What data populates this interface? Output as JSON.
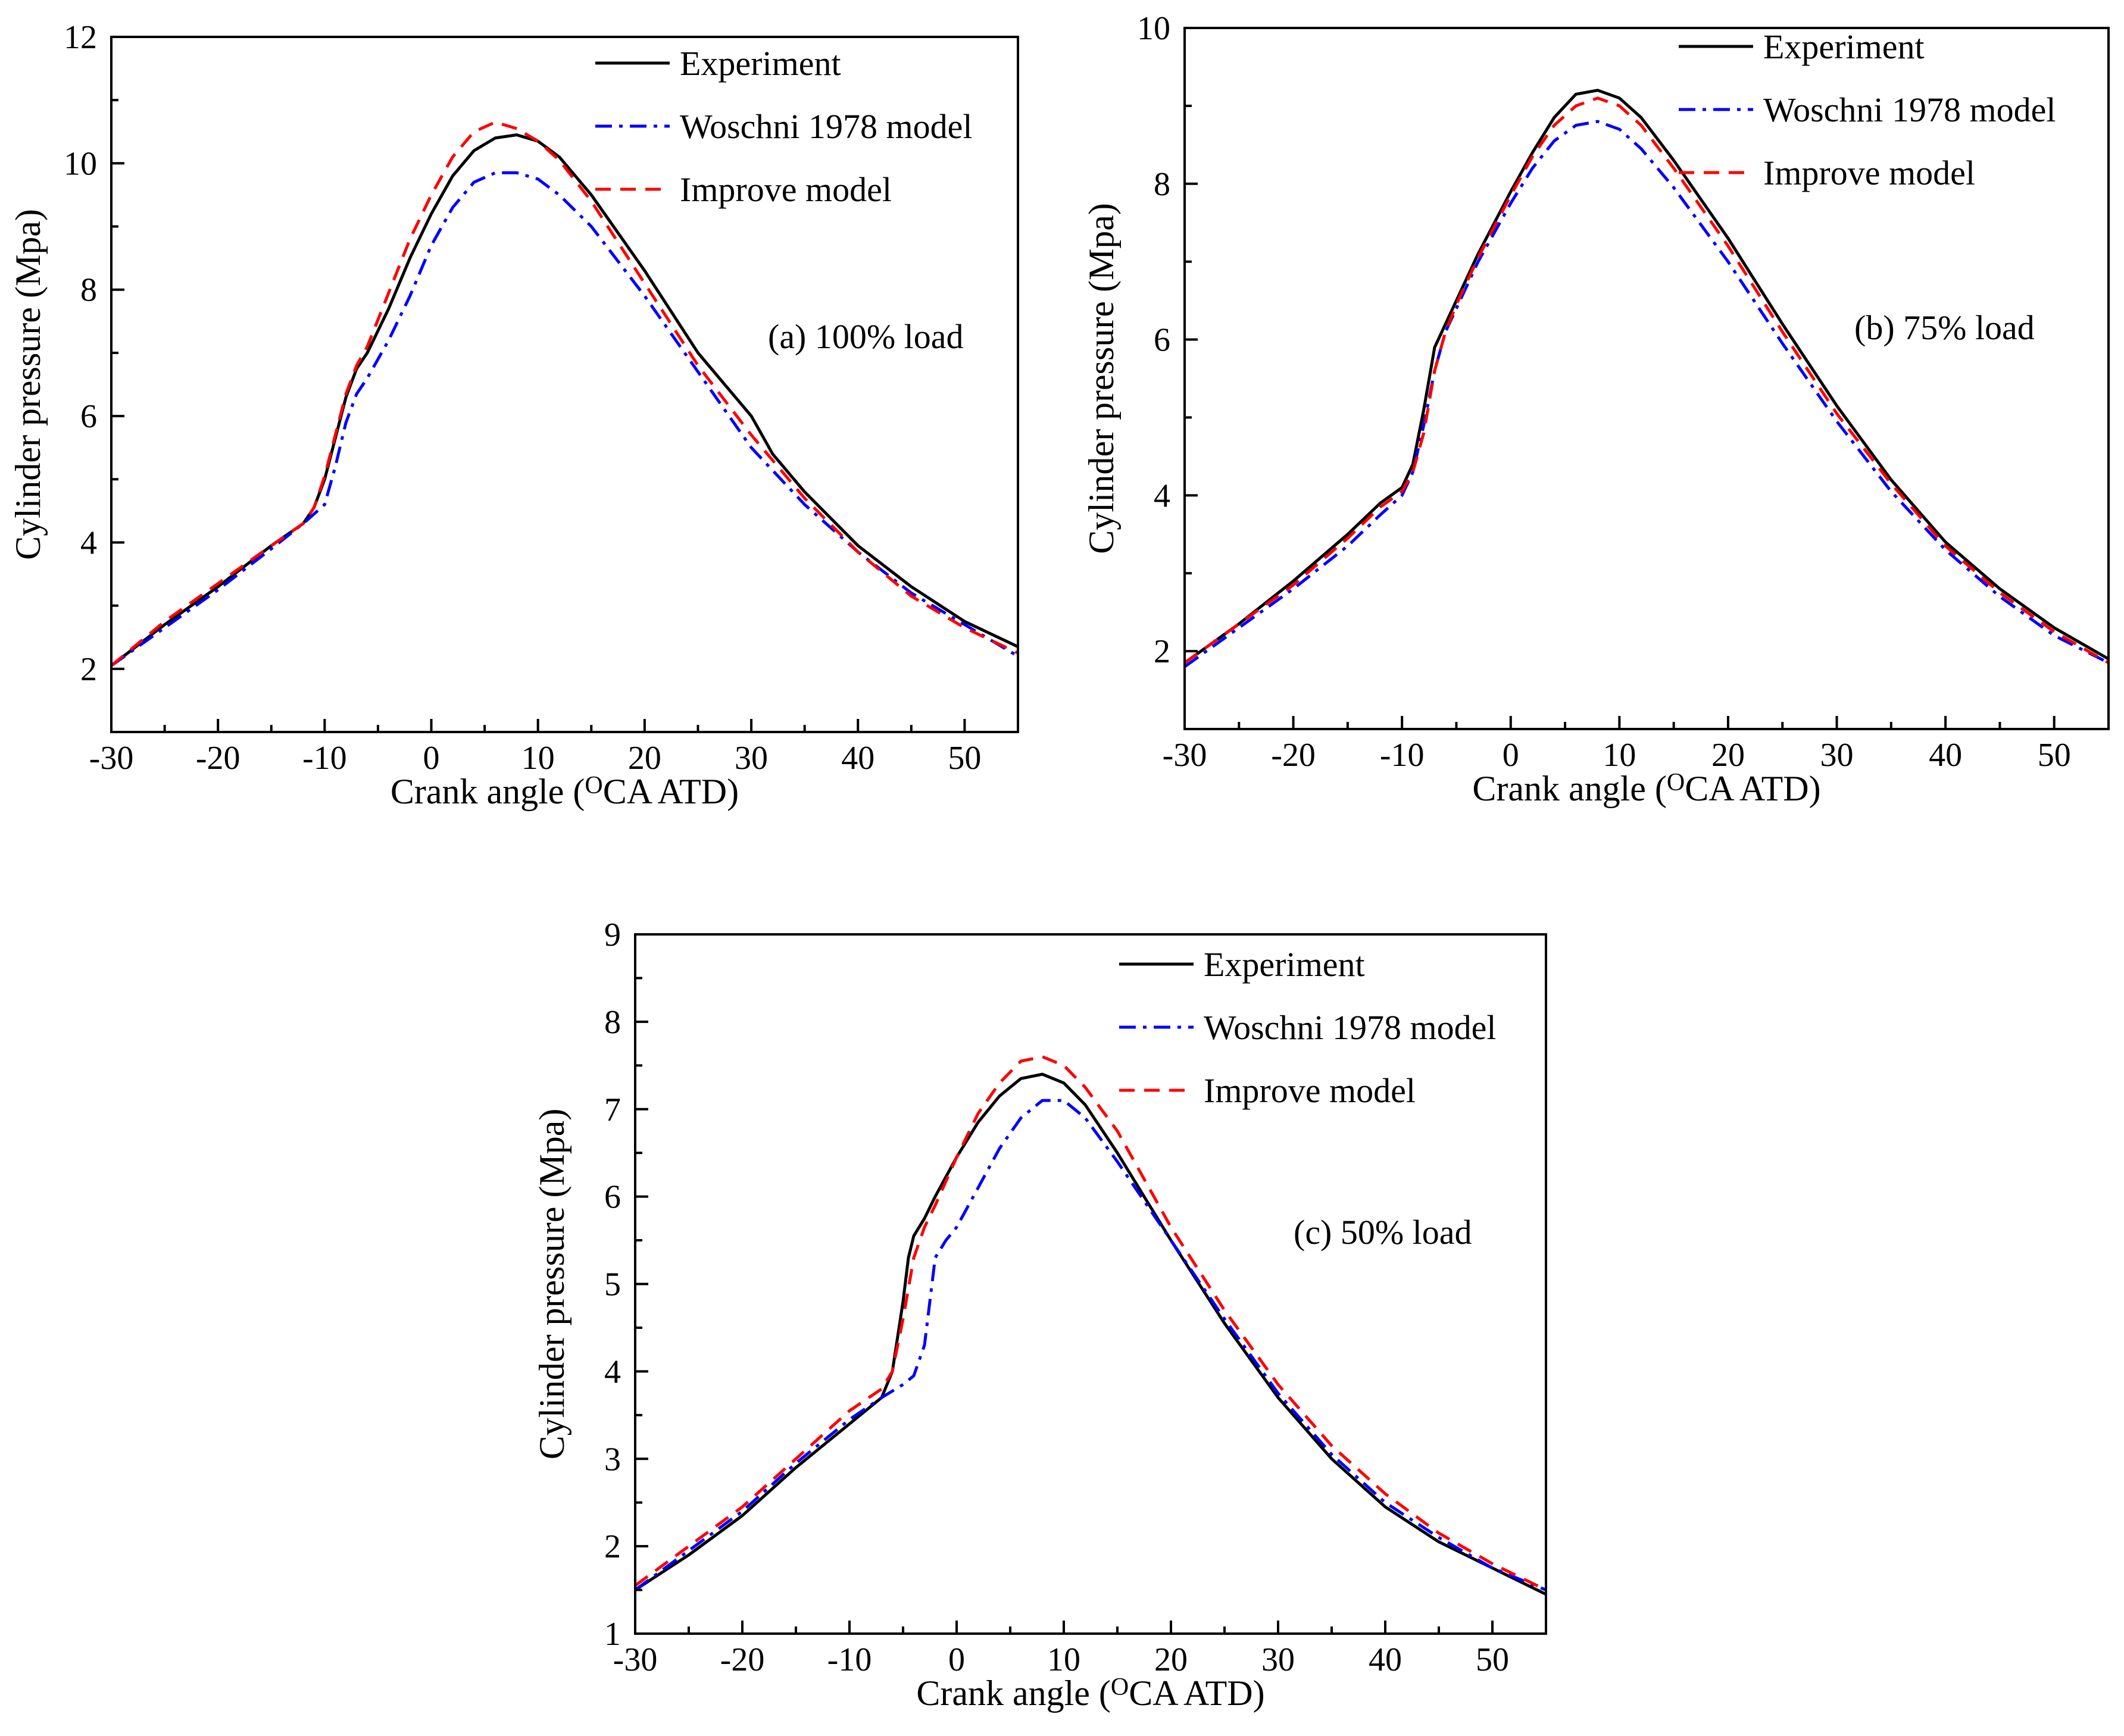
{
  "chart_data": [
    {
      "type": "line",
      "panel": "a",
      "annotation": "(a) 100% load",
      "xlabel": "Crank angle (°CA ATD)",
      "xlabel_pre": "Crank angle (",
      "xlabel_sup": "O",
      "xlabel_post": "CA ATD)",
      "ylabel": "Cylinder pressure (Mpa)",
      "xlim": [
        -30,
        55
      ],
      "ylim": [
        1,
        12
      ],
      "xticks": [
        -30,
        -20,
        -10,
        0,
        10,
        20,
        30,
        40,
        50
      ],
      "yticks": [
        2,
        4,
        6,
        8,
        10,
        12
      ],
      "legend": [
        "Experiment",
        "Woschni 1978 model",
        "Improve model"
      ],
      "legend_position": "top-right",
      "series": [
        {
          "name": "Experiment",
          "color": "#000000",
          "dash": "solid",
          "x": [
            -30,
            -25,
            -20,
            -15,
            -12,
            -11,
            -10,
            -9,
            -8,
            -7,
            -6,
            -4,
            -2,
            0,
            2,
            4,
            6,
            8,
            10,
            12,
            15,
            20,
            25,
            30,
            32,
            35,
            40,
            45,
            50,
            55
          ],
          "y": [
            2.05,
            2.7,
            3.3,
            3.95,
            4.3,
            4.55,
            5.0,
            5.65,
            6.3,
            6.75,
            7.0,
            7.7,
            8.5,
            9.2,
            9.8,
            10.2,
            10.4,
            10.45,
            10.35,
            10.1,
            9.5,
            8.3,
            7.0,
            6.0,
            5.4,
            4.8,
            3.95,
            3.3,
            2.75,
            2.35
          ]
        },
        {
          "name": "Woschni 1978 model",
          "color": "#0000ff",
          "dash": "dashdot",
          "x": [
            -30,
            -25,
            -20,
            -15,
            -12,
            -10,
            -9,
            -8,
            -7,
            -6,
            -4,
            -2,
            0,
            2,
            4,
            6,
            8,
            10,
            12,
            15,
            20,
            25,
            30,
            35,
            40,
            45,
            50,
            55
          ],
          "y": [
            2.05,
            2.65,
            3.25,
            3.9,
            4.3,
            4.6,
            5.2,
            5.9,
            6.35,
            6.6,
            7.2,
            7.9,
            8.7,
            9.3,
            9.7,
            9.85,
            9.85,
            9.75,
            9.5,
            9.0,
            7.9,
            6.7,
            5.5,
            4.6,
            3.85,
            3.2,
            2.7,
            2.2
          ]
        },
        {
          "name": "Improve model",
          "color": "#ff0000",
          "dash": "dashed",
          "x": [
            -30,
            -25,
            -20,
            -15,
            -12,
            -11,
            -10,
            -9,
            -8,
            -7,
            -6,
            -4,
            -2,
            0,
            2,
            4,
            6,
            8,
            10,
            12,
            15,
            20,
            25,
            30,
            35,
            40,
            45,
            50,
            55
          ],
          "y": [
            2.05,
            2.75,
            3.35,
            3.95,
            4.3,
            4.55,
            5.05,
            5.7,
            6.35,
            6.8,
            7.1,
            7.95,
            8.8,
            9.5,
            10.1,
            10.5,
            10.65,
            10.55,
            10.35,
            10.05,
            9.4,
            8.1,
            6.8,
            5.7,
            4.7,
            3.85,
            3.15,
            2.65,
            2.25
          ]
        }
      ]
    },
    {
      "type": "line",
      "panel": "b",
      "annotation": "(b) 75% load",
      "xlabel": "Crank angle (°CA ATD)",
      "xlabel_pre": "Crank angle (",
      "xlabel_sup": "O",
      "xlabel_post": "CA ATD)",
      "ylabel": "Cylinder pressure (Mpa)",
      "xlim": [
        -30,
        55
      ],
      "ylim": [
        1,
        10
      ],
      "xticks": [
        -30,
        -20,
        -10,
        0,
        10,
        20,
        30,
        40,
        50
      ],
      "yticks": [
        2,
        4,
        6,
        8,
        10
      ],
      "legend": [
        "Experiment",
        "Woschni 1978 model",
        "Improve model"
      ],
      "legend_position": "top-right",
      "series": [
        {
          "name": "Experiment",
          "color": "#000000",
          "dash": "solid",
          "x": [
            -30,
            -25,
            -20,
            -15,
            -12,
            -11,
            -10,
            -9,
            -8,
            -7,
            -6,
            -5,
            -3,
            0,
            2,
            4,
            6,
            8,
            10,
            12,
            15,
            20,
            25,
            30,
            35,
            40,
            45,
            50,
            55
          ],
          "y": [
            1.85,
            2.35,
            2.9,
            3.5,
            3.9,
            4.0,
            4.1,
            4.4,
            5.1,
            5.9,
            6.2,
            6.5,
            7.1,
            7.9,
            8.4,
            8.85,
            9.15,
            9.2,
            9.1,
            8.85,
            8.3,
            7.3,
            6.2,
            5.15,
            4.2,
            3.4,
            2.8,
            2.3,
            1.9
          ]
        },
        {
          "name": "Woschni 1978 model",
          "color": "#0000ff",
          "dash": "dashdot",
          "x": [
            -30,
            -25,
            -20,
            -15,
            -12,
            -10,
            -9,
            -8,
            -7,
            -6,
            -5,
            -3,
            0,
            2,
            4,
            6,
            8,
            10,
            12,
            15,
            20,
            25,
            30,
            35,
            40,
            45,
            50,
            55
          ],
          "y": [
            1.8,
            2.3,
            2.8,
            3.35,
            3.75,
            4.0,
            4.3,
            4.9,
            5.6,
            6.1,
            6.4,
            7.0,
            7.75,
            8.2,
            8.55,
            8.75,
            8.8,
            8.7,
            8.45,
            7.95,
            7.0,
            5.95,
            4.95,
            4.05,
            3.3,
            2.7,
            2.2,
            1.85
          ]
        },
        {
          "name": "Improve model",
          "color": "#ff0000",
          "dash": "dashed",
          "x": [
            -30,
            -25,
            -20,
            -15,
            -12,
            -10,
            -9,
            -8,
            -7,
            -6,
            -5,
            -3,
            0,
            2,
            4,
            6,
            8,
            10,
            12,
            15,
            20,
            25,
            30,
            35,
            40,
            45,
            50,
            55
          ],
          "y": [
            1.85,
            2.35,
            2.85,
            3.45,
            3.85,
            4.05,
            4.3,
            4.8,
            5.6,
            6.1,
            6.45,
            7.05,
            7.85,
            8.35,
            8.75,
            9.0,
            9.1,
            9.0,
            8.75,
            8.2,
            7.2,
            6.1,
            5.05,
            4.15,
            3.35,
            2.75,
            2.25,
            1.85
          ]
        }
      ]
    },
    {
      "type": "line",
      "panel": "c",
      "annotation": "(c) 50% load",
      "xlabel": "Crank angle (°CA ATD)",
      "xlabel_pre": "Crank angle (",
      "xlabel_sup": "O",
      "xlabel_post": "CA ATD)",
      "ylabel": "Cylinder pressure (Mpa)",
      "xlim": [
        -30,
        55
      ],
      "ylim": [
        1,
        9
      ],
      "xticks": [
        -30,
        -20,
        -10,
        0,
        10,
        20,
        30,
        40,
        50
      ],
      "yticks": [
        1,
        2,
        3,
        4,
        5,
        6,
        7,
        8,
        9
      ],
      "legend": [
        "Experiment",
        "Woschni 1978 model",
        "Improve model"
      ],
      "legend_position": "top-right",
      "series": [
        {
          "name": "Experiment",
          "color": "#000000",
          "dash": "solid",
          "x": [
            -30,
            -25,
            -20,
            -15,
            -10,
            -8,
            -7,
            -6,
            -5,
            -4.5,
            -4,
            -3,
            -2,
            0,
            2,
            4,
            6,
            8,
            10,
            12,
            15,
            20,
            25,
            30,
            35,
            40,
            45,
            50,
            55
          ],
          "y": [
            1.5,
            1.9,
            2.35,
            2.9,
            3.4,
            3.6,
            3.7,
            4.0,
            4.8,
            5.3,
            5.55,
            5.75,
            6.0,
            6.45,
            6.85,
            7.15,
            7.35,
            7.4,
            7.3,
            7.05,
            6.5,
            5.5,
            4.55,
            3.7,
            3.0,
            2.45,
            2.05,
            1.75,
            1.45
          ]
        },
        {
          "name": "Woschni 1978 model",
          "color": "#0000ff",
          "dash": "dashdot",
          "x": [
            -30,
            -25,
            -20,
            -15,
            -10,
            -7,
            -5,
            -4,
            -3,
            -2,
            -1,
            0,
            2,
            4,
            6,
            8,
            10,
            12,
            15,
            20,
            25,
            30,
            35,
            40,
            45,
            50,
            55
          ],
          "y": [
            1.5,
            1.95,
            2.4,
            2.95,
            3.45,
            3.7,
            3.85,
            3.95,
            4.3,
            5.3,
            5.5,
            5.65,
            6.1,
            6.55,
            6.9,
            7.1,
            7.1,
            6.9,
            6.4,
            5.5,
            4.6,
            3.75,
            3.05,
            2.5,
            2.1,
            1.75,
            1.5
          ]
        },
        {
          "name": "Improve model",
          "color": "#ff0000",
          "dash": "dashed",
          "x": [
            -30,
            -25,
            -20,
            -15,
            -10,
            -7,
            -6,
            -5,
            -4,
            -3,
            -2,
            0,
            2,
            4,
            6,
            8,
            10,
            12,
            15,
            20,
            25,
            30,
            35,
            40,
            45,
            50,
            55
          ],
          "y": [
            1.55,
            2.0,
            2.45,
            3.0,
            3.55,
            3.8,
            4.0,
            4.6,
            5.3,
            5.65,
            5.9,
            6.45,
            6.95,
            7.3,
            7.55,
            7.6,
            7.5,
            7.25,
            6.75,
            5.65,
            4.7,
            3.85,
            3.15,
            2.6,
            2.15,
            1.8,
            1.5
          ]
        }
      ]
    }
  ]
}
